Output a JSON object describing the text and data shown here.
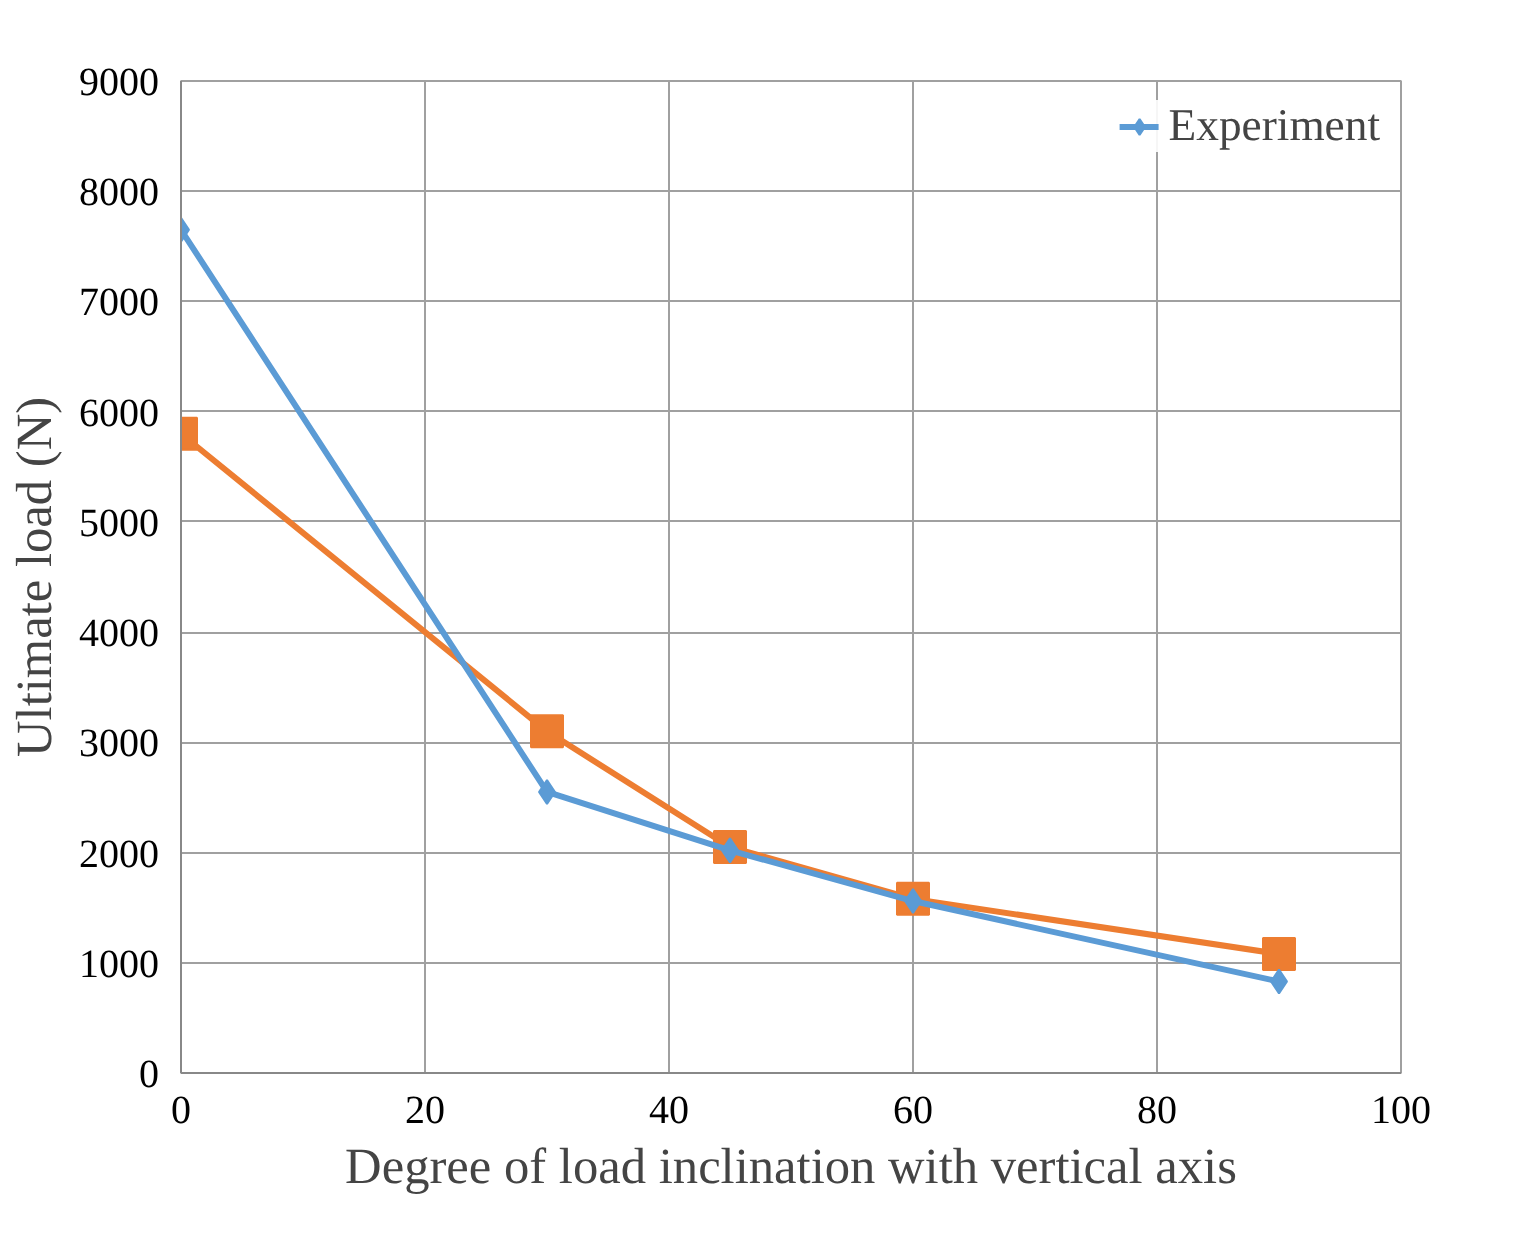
{
  "chart_data": {
    "type": "line",
    "xlabel": "Degree of load inclination with vertical axis",
    "ylabel": "Ultimate load (N)",
    "x": [
      0,
      30,
      45,
      60,
      90
    ],
    "series": [
      {
        "color": "#ed7d31",
        "marker": "square",
        "values": [
          5800,
          3100,
          2050,
          1580,
          1080
        ]
      },
      {
        "name": "Experiment",
        "color": "#5b9bd5",
        "marker": "diamond",
        "values": [
          7650,
          2550,
          2020,
          1560,
          830
        ]
      }
    ],
    "xlim": [
      0,
      100
    ],
    "xticks": [
      0,
      20,
      40,
      60,
      80,
      100
    ],
    "ylim": [
      0,
      9000
    ],
    "yticks": [
      0,
      1000,
      2000,
      3000,
      4000,
      5000,
      6000,
      7000,
      8000,
      9000
    ],
    "grid": true,
    "legend": "top right",
    "line_style": "solid"
  }
}
